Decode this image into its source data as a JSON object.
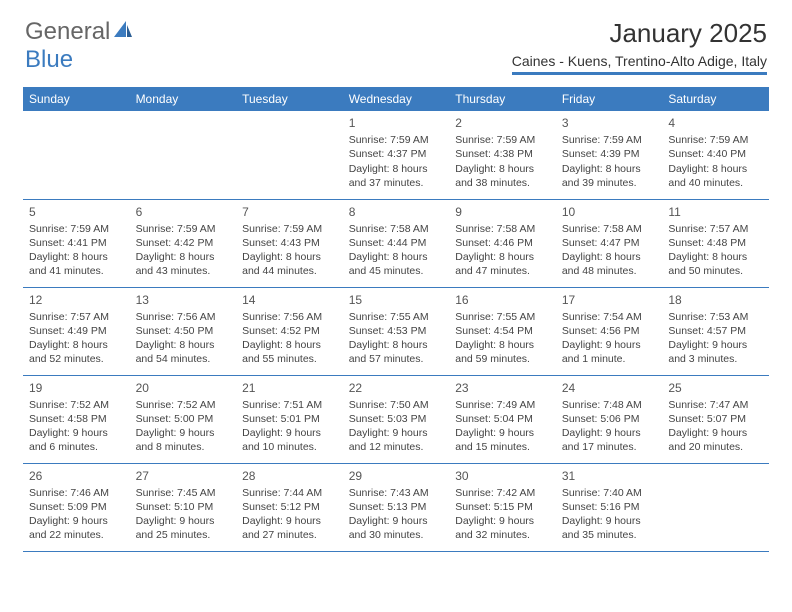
{
  "logo": {
    "text1": "General",
    "text2": "Blue"
  },
  "title": "January 2025",
  "subtitle": "Caines - Kuens, Trentino-Alto Adige, Italy",
  "colors": {
    "brand": "#3b7bbf",
    "text": "#444444",
    "background": "#ffffff"
  },
  "dayHeaders": [
    "Sunday",
    "Monday",
    "Tuesday",
    "Wednesday",
    "Thursday",
    "Friday",
    "Saturday"
  ],
  "weeks": [
    [
      null,
      null,
      null,
      {
        "n": "1",
        "sr": "Sunrise: 7:59 AM",
        "ss": "Sunset: 4:37 PM",
        "d1": "Daylight: 8 hours",
        "d2": "and 37 minutes."
      },
      {
        "n": "2",
        "sr": "Sunrise: 7:59 AM",
        "ss": "Sunset: 4:38 PM",
        "d1": "Daylight: 8 hours",
        "d2": "and 38 minutes."
      },
      {
        "n": "3",
        "sr": "Sunrise: 7:59 AM",
        "ss": "Sunset: 4:39 PM",
        "d1": "Daylight: 8 hours",
        "d2": "and 39 minutes."
      },
      {
        "n": "4",
        "sr": "Sunrise: 7:59 AM",
        "ss": "Sunset: 4:40 PM",
        "d1": "Daylight: 8 hours",
        "d2": "and 40 minutes."
      }
    ],
    [
      {
        "n": "5",
        "sr": "Sunrise: 7:59 AM",
        "ss": "Sunset: 4:41 PM",
        "d1": "Daylight: 8 hours",
        "d2": "and 41 minutes."
      },
      {
        "n": "6",
        "sr": "Sunrise: 7:59 AM",
        "ss": "Sunset: 4:42 PM",
        "d1": "Daylight: 8 hours",
        "d2": "and 43 minutes."
      },
      {
        "n": "7",
        "sr": "Sunrise: 7:59 AM",
        "ss": "Sunset: 4:43 PM",
        "d1": "Daylight: 8 hours",
        "d2": "and 44 minutes."
      },
      {
        "n": "8",
        "sr": "Sunrise: 7:58 AM",
        "ss": "Sunset: 4:44 PM",
        "d1": "Daylight: 8 hours",
        "d2": "and 45 minutes."
      },
      {
        "n": "9",
        "sr": "Sunrise: 7:58 AM",
        "ss": "Sunset: 4:46 PM",
        "d1": "Daylight: 8 hours",
        "d2": "and 47 minutes."
      },
      {
        "n": "10",
        "sr": "Sunrise: 7:58 AM",
        "ss": "Sunset: 4:47 PM",
        "d1": "Daylight: 8 hours",
        "d2": "and 48 minutes."
      },
      {
        "n": "11",
        "sr": "Sunrise: 7:57 AM",
        "ss": "Sunset: 4:48 PM",
        "d1": "Daylight: 8 hours",
        "d2": "and 50 minutes."
      }
    ],
    [
      {
        "n": "12",
        "sr": "Sunrise: 7:57 AM",
        "ss": "Sunset: 4:49 PM",
        "d1": "Daylight: 8 hours",
        "d2": "and 52 minutes."
      },
      {
        "n": "13",
        "sr": "Sunrise: 7:56 AM",
        "ss": "Sunset: 4:50 PM",
        "d1": "Daylight: 8 hours",
        "d2": "and 54 minutes."
      },
      {
        "n": "14",
        "sr": "Sunrise: 7:56 AM",
        "ss": "Sunset: 4:52 PM",
        "d1": "Daylight: 8 hours",
        "d2": "and 55 minutes."
      },
      {
        "n": "15",
        "sr": "Sunrise: 7:55 AM",
        "ss": "Sunset: 4:53 PM",
        "d1": "Daylight: 8 hours",
        "d2": "and 57 minutes."
      },
      {
        "n": "16",
        "sr": "Sunrise: 7:55 AM",
        "ss": "Sunset: 4:54 PM",
        "d1": "Daylight: 8 hours",
        "d2": "and 59 minutes."
      },
      {
        "n": "17",
        "sr": "Sunrise: 7:54 AM",
        "ss": "Sunset: 4:56 PM",
        "d1": "Daylight: 9 hours",
        "d2": "and 1 minute."
      },
      {
        "n": "18",
        "sr": "Sunrise: 7:53 AM",
        "ss": "Sunset: 4:57 PM",
        "d1": "Daylight: 9 hours",
        "d2": "and 3 minutes."
      }
    ],
    [
      {
        "n": "19",
        "sr": "Sunrise: 7:52 AM",
        "ss": "Sunset: 4:58 PM",
        "d1": "Daylight: 9 hours",
        "d2": "and 6 minutes."
      },
      {
        "n": "20",
        "sr": "Sunrise: 7:52 AM",
        "ss": "Sunset: 5:00 PM",
        "d1": "Daylight: 9 hours",
        "d2": "and 8 minutes."
      },
      {
        "n": "21",
        "sr": "Sunrise: 7:51 AM",
        "ss": "Sunset: 5:01 PM",
        "d1": "Daylight: 9 hours",
        "d2": "and 10 minutes."
      },
      {
        "n": "22",
        "sr": "Sunrise: 7:50 AM",
        "ss": "Sunset: 5:03 PM",
        "d1": "Daylight: 9 hours",
        "d2": "and 12 minutes."
      },
      {
        "n": "23",
        "sr": "Sunrise: 7:49 AM",
        "ss": "Sunset: 5:04 PM",
        "d1": "Daylight: 9 hours",
        "d2": "and 15 minutes."
      },
      {
        "n": "24",
        "sr": "Sunrise: 7:48 AM",
        "ss": "Sunset: 5:06 PM",
        "d1": "Daylight: 9 hours",
        "d2": "and 17 minutes."
      },
      {
        "n": "25",
        "sr": "Sunrise: 7:47 AM",
        "ss": "Sunset: 5:07 PM",
        "d1": "Daylight: 9 hours",
        "d2": "and 20 minutes."
      }
    ],
    [
      {
        "n": "26",
        "sr": "Sunrise: 7:46 AM",
        "ss": "Sunset: 5:09 PM",
        "d1": "Daylight: 9 hours",
        "d2": "and 22 minutes."
      },
      {
        "n": "27",
        "sr": "Sunrise: 7:45 AM",
        "ss": "Sunset: 5:10 PM",
        "d1": "Daylight: 9 hours",
        "d2": "and 25 minutes."
      },
      {
        "n": "28",
        "sr": "Sunrise: 7:44 AM",
        "ss": "Sunset: 5:12 PM",
        "d1": "Daylight: 9 hours",
        "d2": "and 27 minutes."
      },
      {
        "n": "29",
        "sr": "Sunrise: 7:43 AM",
        "ss": "Sunset: 5:13 PM",
        "d1": "Daylight: 9 hours",
        "d2": "and 30 minutes."
      },
      {
        "n": "30",
        "sr": "Sunrise: 7:42 AM",
        "ss": "Sunset: 5:15 PM",
        "d1": "Daylight: 9 hours",
        "d2": "and 32 minutes."
      },
      {
        "n": "31",
        "sr": "Sunrise: 7:40 AM",
        "ss": "Sunset: 5:16 PM",
        "d1": "Daylight: 9 hours",
        "d2": "and 35 minutes."
      },
      null
    ]
  ]
}
